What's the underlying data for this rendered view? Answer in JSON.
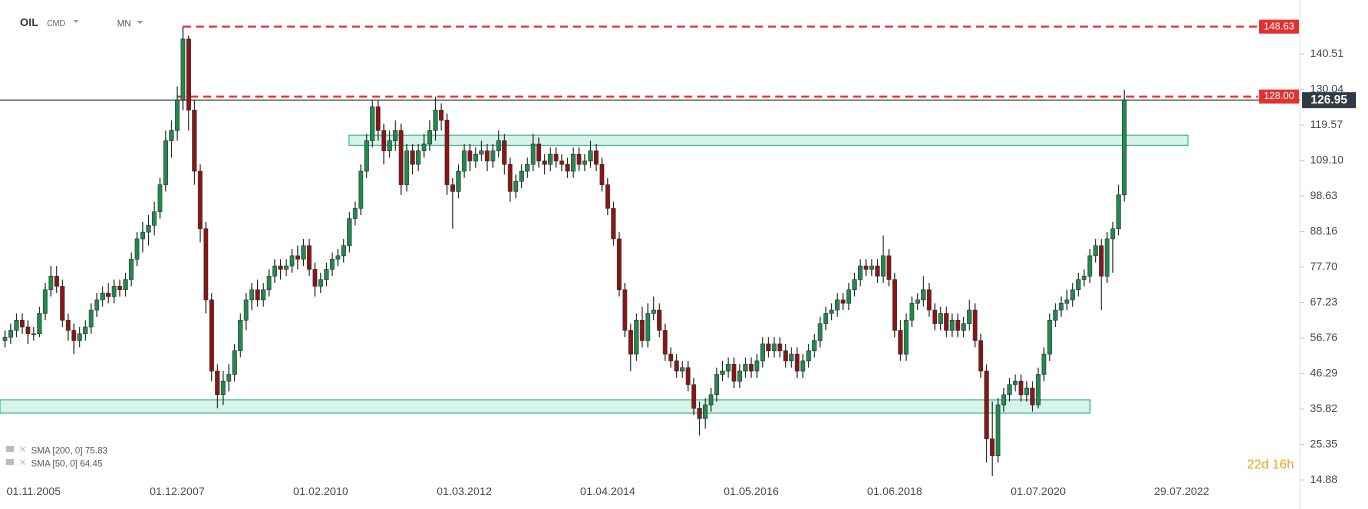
{
  "chart_data": {
    "type": "candlestick",
    "symbol": "OIL",
    "market": "CMD",
    "interval": "MN",
    "indicators": [
      "SMA [200, 0] 75.83",
      "SMA [50, 0] 64.45"
    ],
    "countdown": "22d 16h",
    "up_color": "#1e8c4e",
    "down_color": "#8b1414",
    "zone_color": "#2bb58a",
    "level_color": "#e03131",
    "ylim": [
      11.9,
      156.5
    ],
    "yticks": [
      14.88,
      25.35,
      35.82,
      46.29,
      56.76,
      67.23,
      {
        "value": 77.7,
        "label": "77.70"
      },
      88.16,
      98.63,
      {
        "value": 109.1,
        "label": "109.10"
      },
      119.57,
      130.04,
      140.51
    ],
    "levels": [
      148.63,
      {
        "value": 128,
        "label": "128.00"
      }
    ],
    "zones": [
      [
        113.6,
        116.6
      ],
      [
        34.6,
        38.5
      ]
    ],
    "categories": [
      null,
      null,
      null,
      null,
      null,
      "01.11.2005",
      null,
      null,
      null,
      null,
      null,
      null,
      null,
      null,
      null,
      null,
      null,
      null,
      null,
      null,
      null,
      null,
      null,
      null,
      null,
      null,
      null,
      null,
      null,
      null,
      "01.12.2007",
      null,
      null,
      null,
      null,
      null,
      null,
      null,
      null,
      null,
      null,
      null,
      null,
      null,
      null,
      null,
      null,
      null,
      null,
      null,
      null,
      null,
      null,
      null,
      null,
      "01.02.2010",
      null,
      null,
      null,
      null,
      null,
      null,
      null,
      null,
      null,
      null,
      null,
      null,
      null,
      null,
      null,
      null,
      null,
      null,
      null,
      null,
      null,
      null,
      null,
      null,
      "01.03.2012",
      null,
      null,
      null,
      null,
      null,
      null,
      null,
      null,
      null,
      null,
      null,
      null,
      null,
      null,
      null,
      null,
      null,
      null,
      null,
      null,
      null,
      null,
      null,
      null,
      "01.04.2014",
      null,
      null,
      null,
      null,
      null,
      null,
      null,
      null,
      null,
      null,
      null,
      null,
      null,
      null,
      null,
      null,
      null,
      null,
      null,
      null,
      null,
      null,
      null,
      null,
      "01.05.2016",
      null,
      null,
      null,
      null,
      null,
      null,
      null,
      null,
      null,
      null,
      null,
      null,
      null,
      null,
      null,
      null,
      null,
      null,
      null,
      null,
      null,
      null,
      null,
      null,
      "01.06.2018",
      null,
      null,
      null,
      null,
      null,
      null,
      null,
      null,
      null,
      null,
      null,
      null,
      null,
      null,
      null,
      null,
      null,
      null,
      null,
      null,
      null,
      null,
      null,
      null,
      "01.07.2020",
      null,
      null,
      null,
      null,
      null,
      null,
      null,
      null,
      null,
      null,
      null,
      null,
      null,
      null,
      null,
      null,
      null,
      null,
      null,
      null,
      null,
      null,
      null,
      null,
      "29.07.2022",
      null,
      null,
      null,
      null,
      null,
      null,
      null,
      null,
      null,
      null,
      null,
      null,
      null,
      null,
      null,
      null,
      null,
      null,
      null,
      null
    ],
    "ohlc": [
      [
        56,
        59,
        54,
        57
      ],
      [
        57,
        61,
        55,
        59
      ],
      [
        59,
        64,
        57,
        62
      ],
      [
        62,
        64,
        58,
        60
      ],
      [
        60,
        62,
        55,
        58
      ],
      [
        58,
        60,
        56,
        58
      ],
      [
        58,
        66,
        57,
        64
      ],
      [
        64,
        73,
        62,
        71
      ],
      [
        71,
        78,
        69,
        75
      ],
      [
        75,
        78,
        70,
        72
      ],
      [
        72,
        74,
        60,
        62
      ],
      [
        62,
        64,
        56,
        59
      ],
      [
        59,
        61,
        52,
        56
      ],
      [
        56,
        60,
        54,
        58
      ],
      [
        58,
        62,
        56,
        60
      ],
      [
        60,
        67,
        58,
        65
      ],
      [
        65,
        70,
        63,
        68
      ],
      [
        68,
        72,
        66,
        70
      ],
      [
        70,
        73,
        67,
        69
      ],
      [
        69,
        74,
        67,
        72
      ],
      [
        72,
        74,
        69,
        71
      ],
      [
        71,
        76,
        69,
        74
      ],
      [
        74,
        82,
        72,
        80
      ],
      [
        80,
        88,
        78,
        86
      ],
      [
        86,
        91,
        82,
        88
      ],
      [
        88,
        93,
        84,
        90
      ],
      [
        90,
        97,
        87,
        94
      ],
      [
        94,
        104,
        92,
        102
      ],
      [
        102,
        118,
        100,
        115
      ],
      [
        115,
        121,
        110,
        118
      ],
      [
        118,
        131,
        115,
        127
      ],
      [
        127,
        148.63,
        124,
        145
      ],
      [
        145,
        146,
        118,
        124
      ],
      [
        124,
        127,
        102,
        106
      ],
      [
        106,
        108,
        85,
        89
      ],
      [
        89,
        91,
        64,
        68
      ],
      [
        68,
        70,
        44,
        47
      ],
      [
        47,
        49,
        36,
        40
      ],
      [
        40,
        47,
        37,
        44
      ],
      [
        44,
        49,
        41,
        46
      ],
      [
        46,
        55,
        44,
        53
      ],
      [
        53,
        64,
        51,
        62
      ],
      [
        62,
        70,
        59,
        68
      ],
      [
        68,
        73,
        65,
        71
      ],
      [
        71,
        74,
        66,
        68
      ],
      [
        68,
        73,
        66,
        71
      ],
      [
        71,
        77,
        69,
        75
      ],
      [
        75,
        80,
        73,
        78
      ],
      [
        78,
        80,
        74,
        77
      ],
      [
        77,
        80,
        75,
        78
      ],
      [
        78,
        83,
        76,
        81
      ],
      [
        81,
        84,
        77,
        80
      ],
      [
        80,
        86,
        78,
        84
      ],
      [
        84,
        86,
        75,
        77
      ],
      [
        77,
        79,
        69,
        72
      ],
      [
        72,
        76,
        70,
        74
      ],
      [
        74,
        79,
        72,
        77
      ],
      [
        77,
        82,
        75,
        80
      ],
      [
        80,
        83,
        78,
        81
      ],
      [
        81,
        86,
        79,
        84
      ],
      [
        84,
        94,
        82,
        92
      ],
      [
        92,
        97,
        90,
        95
      ],
      [
        95,
        108,
        93,
        106
      ],
      [
        106,
        117,
        104,
        115
      ],
      [
        115,
        127,
        113,
        125
      ],
      [
        125,
        127,
        115,
        118
      ],
      [
        118,
        120,
        108,
        112
      ],
      [
        112,
        118,
        110,
        115
      ],
      [
        115,
        121,
        112,
        118
      ],
      [
        118,
        120,
        99,
        102
      ],
      [
        102,
        114,
        100,
        112
      ],
      [
        112,
        114,
        105,
        108
      ],
      [
        108,
        114,
        106,
        112
      ],
      [
        112,
        117,
        110,
        114
      ],
      [
        114,
        121,
        112,
        118
      ],
      [
        118,
        128,
        115,
        124
      ],
      [
        124,
        126,
        118,
        121
      ],
      [
        121,
        123,
        99,
        102
      ],
      [
        102,
        104,
        89,
        100
      ],
      [
        100,
        108,
        98,
        106
      ],
      [
        106,
        114,
        104,
        112
      ],
      [
        112,
        114,
        106,
        109
      ],
      [
        109,
        113,
        107,
        111
      ],
      [
        111,
        115,
        109,
        112
      ],
      [
        112,
        114,
        106,
        109
      ],
      [
        109,
        114,
        107,
        112
      ],
      [
        112,
        118,
        110,
        115
      ],
      [
        115,
        117,
        105,
        108
      ],
      [
        108,
        110,
        97,
        100
      ],
      [
        100,
        105,
        98,
        103
      ],
      [
        103,
        108,
        101,
        106
      ],
      [
        106,
        110,
        104,
        108
      ],
      [
        108,
        117,
        106,
        114
      ],
      [
        114,
        116,
        107,
        109
      ],
      [
        109,
        111,
        105,
        108
      ],
      [
        108,
        113,
        106,
        111
      ],
      [
        111,
        113,
        107,
        109
      ],
      [
        109,
        111,
        106,
        108
      ],
      [
        108,
        110,
        104,
        106
      ],
      [
        106,
        113,
        104,
        111
      ],
      [
        111,
        113,
        106,
        108
      ],
      [
        108,
        111,
        106,
        109
      ],
      [
        109,
        115,
        107,
        112
      ],
      [
        112,
        114,
        106,
        108
      ],
      [
        108,
        110,
        100,
        102
      ],
      [
        102,
        104,
        93,
        95
      ],
      [
        95,
        97,
        84,
        86
      ],
      [
        86,
        88,
        69,
        71
      ],
      [
        71,
        73,
        57,
        59
      ],
      [
        59,
        61,
        47,
        52
      ],
      [
        52,
        64,
        50,
        62
      ],
      [
        62,
        66,
        54,
        56
      ],
      [
        56,
        67,
        54,
        64
      ],
      [
        64,
        69,
        62,
        65
      ],
      [
        65,
        67,
        57,
        59
      ],
      [
        59,
        61,
        50,
        52
      ],
      [
        52,
        54,
        48,
        50
      ],
      [
        50,
        52,
        45,
        47
      ],
      [
        47,
        50,
        45,
        48
      ],
      [
        48,
        50,
        41,
        43
      ],
      [
        43,
        45,
        34,
        36
      ],
      [
        36,
        38,
        28,
        33
      ],
      [
        33,
        39,
        30,
        37
      ],
      [
        37,
        42,
        35,
        40
      ],
      [
        40,
        48,
        38,
        46
      ],
      [
        46,
        50,
        44,
        47
      ],
      [
        47,
        51,
        45,
        49
      ],
      [
        49,
        51,
        42,
        44
      ],
      [
        44,
        49,
        42,
        47
      ],
      [
        47,
        51,
        45,
        49
      ],
      [
        49,
        51,
        45,
        47
      ],
      [
        47,
        52,
        45,
        50
      ],
      [
        50,
        57,
        48,
        55
      ],
      [
        55,
        57,
        51,
        53
      ],
      [
        53,
        57,
        51,
        55
      ],
      [
        55,
        57,
        51,
        53
      ],
      [
        53,
        55,
        48,
        50
      ],
      [
        50,
        54,
        48,
        52
      ],
      [
        52,
        54,
        45,
        47
      ],
      [
        47,
        52,
        45,
        50
      ],
      [
        50,
        55,
        48,
        53
      ],
      [
        53,
        58,
        51,
        56
      ],
      [
        56,
        63,
        54,
        61
      ],
      [
        61,
        66,
        59,
        64
      ],
      [
        64,
        67,
        62,
        65
      ],
      [
        65,
        70,
        63,
        68
      ],
      [
        68,
        70,
        65,
        67
      ],
      [
        67,
        73,
        65,
        71
      ],
      [
        71,
        76,
        69,
        74
      ],
      [
        74,
        80,
        72,
        78
      ],
      [
        78,
        80,
        75,
        77
      ],
      [
        77,
        80,
        75,
        78
      ],
      [
        78,
        80,
        73,
        75
      ],
      [
        75,
        87,
        73,
        81
      ],
      [
        81,
        83,
        72,
        74
      ],
      [
        74,
        76,
        57,
        59
      ],
      [
        59,
        62,
        50,
        52
      ],
      [
        52,
        64,
        50,
        62
      ],
      [
        62,
        69,
        60,
        67
      ],
      [
        67,
        70,
        65,
        68
      ],
      [
        68,
        75,
        66,
        71
      ],
      [
        71,
        73,
        63,
        65
      ],
      [
        65,
        67,
        59,
        61
      ],
      [
        61,
        66,
        59,
        64
      ],
      [
        64,
        66,
        57,
        59
      ],
      [
        59,
        64,
        57,
        62
      ],
      [
        62,
        64,
        57,
        59
      ],
      [
        59,
        63,
        57,
        61
      ],
      [
        61,
        68,
        59,
        65
      ],
      [
        65,
        67,
        54,
        56
      ],
      [
        56,
        58,
        45,
        47
      ],
      [
        47,
        49,
        20,
        27
      ],
      [
        27,
        38,
        16,
        22
      ],
      [
        22,
        39,
        20,
        37
      ],
      [
        37,
        42,
        35,
        40
      ],
      [
        40,
        45,
        38,
        43
      ],
      [
        43,
        46,
        41,
        44
      ],
      [
        44,
        46,
        38,
        40
      ],
      [
        40,
        44,
        38,
        42
      ],
      [
        42,
        44,
        35,
        37
      ],
      [
        37,
        48,
        36,
        46
      ],
      [
        46,
        54,
        44,
        52
      ],
      [
        52,
        64,
        50,
        62
      ],
      [
        62,
        67,
        60,
        65
      ],
      [
        65,
        69,
        63,
        67
      ],
      [
        67,
        71,
        65,
        68
      ],
      [
        68,
        73,
        66,
        71
      ],
      [
        71,
        76,
        69,
        74
      ],
      [
        74,
        77,
        72,
        75
      ],
      [
        75,
        83,
        73,
        81
      ],
      [
        81,
        86,
        79,
        84
      ],
      [
        84,
        86,
        65,
        75
      ],
      [
        75,
        88,
        73,
        86
      ],
      [
        86,
        91,
        76,
        89
      ],
      [
        89,
        102,
        87,
        99
      ],
      [
        99,
        130,
        97,
        126.95
      ],
      null,
      null,
      null,
      null,
      null,
      null,
      null,
      null,
      null,
      null,
      null,
      null,
      null,
      null,
      null,
      null,
      null,
      null,
      null,
      null,
      null,
      null,
      null,
      null,
      null,
      null,
      null,
      null,
      null,
      null
    ]
  }
}
